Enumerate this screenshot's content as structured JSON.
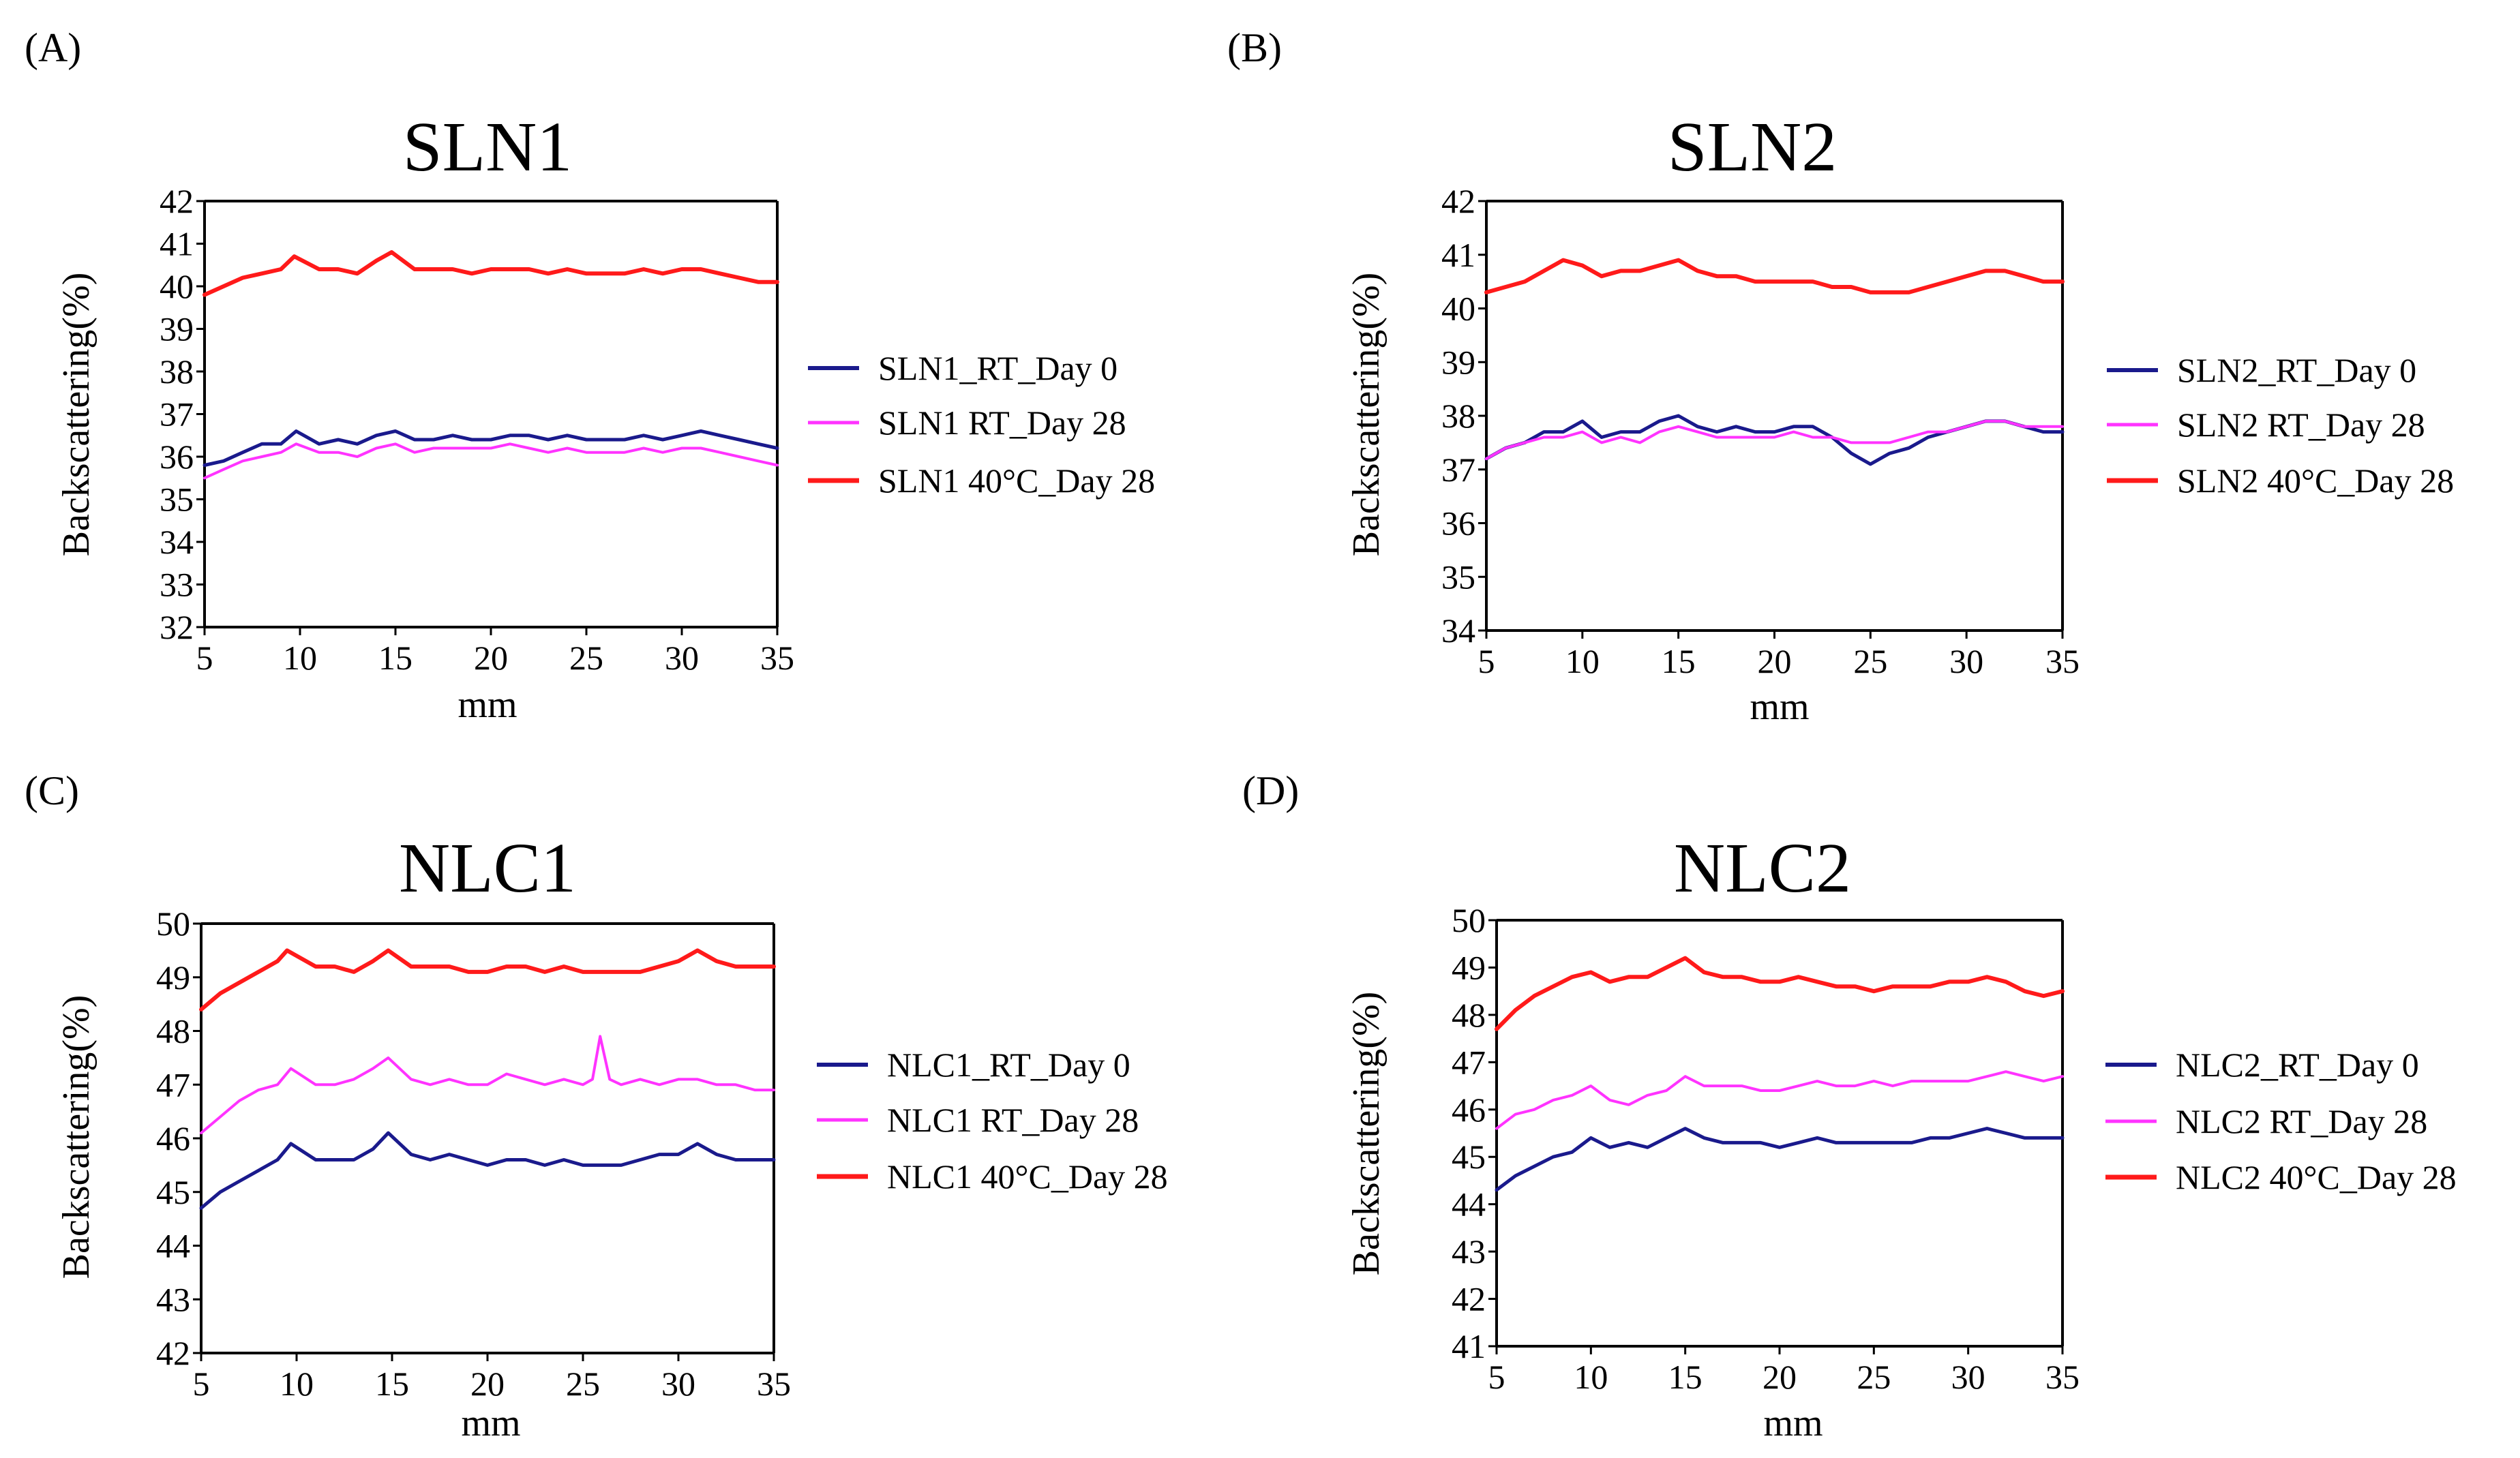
{
  "chart_data": [
    {
      "panel": "(A)",
      "type": "line",
      "title": "SLN1",
      "xlabel": "mm",
      "ylabel": "Backscattering(%)",
      "xlim": [
        5,
        35
      ],
      "ylim": [
        32,
        42
      ],
      "xticks": [
        5,
        10,
        15,
        20,
        25,
        30,
        35
      ],
      "yticks": [
        32,
        33,
        34,
        35,
        36,
        37,
        38,
        39,
        40,
        41,
        42
      ],
      "grid": false,
      "legend": "right",
      "series": [
        {
          "name": "SLN1_RT_Day 0",
          "color": "#1a1a8c",
          "x": [
            5,
            6,
            7,
            8,
            9,
            9.8,
            11,
            12,
            13,
            14,
            15,
            16,
            17,
            18,
            19,
            20,
            21,
            22,
            23,
            24,
            25,
            26,
            27,
            28,
            29,
            30,
            31,
            32,
            33,
            34,
            35
          ],
          "y": [
            35.8,
            35.9,
            36.1,
            36.3,
            36.3,
            36.6,
            36.3,
            36.4,
            36.3,
            36.5,
            36.6,
            36.4,
            36.4,
            36.5,
            36.4,
            36.4,
            36.5,
            36.5,
            36.4,
            36.5,
            36.4,
            36.4,
            36.4,
            36.5,
            36.4,
            36.5,
            36.6,
            36.5,
            36.4,
            36.3,
            36.2
          ]
        },
        {
          "name": "SLN1 RT_Day 28",
          "color": "#ff33ff",
          "x": [
            5,
            6,
            7,
            8,
            9,
            9.8,
            11,
            12,
            13,
            14,
            15,
            16,
            17,
            18,
            19,
            20,
            21,
            22,
            23,
            24,
            25,
            26,
            27,
            28,
            29,
            30,
            31,
            32,
            33,
            34,
            35
          ],
          "y": [
            35.5,
            35.7,
            35.9,
            36.0,
            36.1,
            36.3,
            36.1,
            36.1,
            36.0,
            36.2,
            36.3,
            36.1,
            36.2,
            36.2,
            36.2,
            36.2,
            36.3,
            36.2,
            36.1,
            36.2,
            36.1,
            36.1,
            36.1,
            36.2,
            36.1,
            36.2,
            36.2,
            36.1,
            36.0,
            35.9,
            35.8
          ]
        },
        {
          "name": "SLN1 40°C_Day 28",
          "color": "#ff1a1a",
          "x": [
            5,
            6,
            7,
            8,
            9,
            9.7,
            11,
            12,
            13,
            14,
            14.8,
            16,
            17,
            18,
            19,
            20,
            21,
            22,
            23,
            24,
            25,
            26,
            27,
            28,
            29,
            30,
            31,
            32,
            33,
            34,
            35
          ],
          "y": [
            39.8,
            40.0,
            40.2,
            40.3,
            40.4,
            40.7,
            40.4,
            40.4,
            40.3,
            40.6,
            40.8,
            40.4,
            40.4,
            40.4,
            40.3,
            40.4,
            40.4,
            40.4,
            40.3,
            40.4,
            40.3,
            40.3,
            40.3,
            40.4,
            40.3,
            40.4,
            40.4,
            40.3,
            40.2,
            40.1,
            40.1
          ]
        }
      ]
    },
    {
      "panel": "(B)",
      "type": "line",
      "title": "SLN2",
      "xlabel": "mm",
      "ylabel": "Backscattering(%)",
      "xlim": [
        5,
        35
      ],
      "ylim": [
        34,
        42
      ],
      "xticks": [
        5,
        10,
        15,
        20,
        25,
        30,
        35
      ],
      "yticks": [
        34,
        35,
        36,
        37,
        38,
        39,
        40,
        41,
        42
      ],
      "grid": false,
      "legend": "right",
      "series": [
        {
          "name": "SLN2_RT_Day 0",
          "color": "#1a1a8c",
          "x": [
            5,
            6,
            7,
            8,
            9,
            10,
            11,
            12,
            13,
            14,
            15,
            16,
            17,
            18,
            19,
            20,
            21,
            22,
            23,
            24,
            25,
            26,
            27,
            28,
            29,
            30,
            31,
            32,
            33,
            34,
            35
          ],
          "y": [
            37.2,
            37.4,
            37.5,
            37.7,
            37.7,
            37.9,
            37.6,
            37.7,
            37.7,
            37.9,
            38.0,
            37.8,
            37.7,
            37.8,
            37.7,
            37.7,
            37.8,
            37.8,
            37.6,
            37.3,
            37.1,
            37.3,
            37.4,
            37.6,
            37.7,
            37.8,
            37.9,
            37.9,
            37.8,
            37.7,
            37.7
          ]
        },
        {
          "name": "SLN2 RT_Day 28",
          "color": "#ff33ff",
          "x": [
            5,
            6,
            7,
            8,
            9,
            10,
            11,
            12,
            13,
            14,
            15,
            16,
            17,
            18,
            19,
            20,
            21,
            22,
            23,
            24,
            25,
            26,
            27,
            28,
            29,
            30,
            31,
            32,
            33,
            34,
            35
          ],
          "y": [
            37.2,
            37.4,
            37.5,
            37.6,
            37.6,
            37.7,
            37.5,
            37.6,
            37.5,
            37.7,
            37.8,
            37.7,
            37.6,
            37.6,
            37.6,
            37.6,
            37.7,
            37.6,
            37.6,
            37.5,
            37.5,
            37.5,
            37.6,
            37.7,
            37.7,
            37.8,
            37.9,
            37.9,
            37.8,
            37.8,
            37.8
          ]
        },
        {
          "name": "SLN2 40°C_Day 28",
          "color": "#ff1a1a",
          "x": [
            5,
            6,
            7,
            8,
            9,
            10,
            11,
            12,
            13,
            14,
            15,
            16,
            17,
            18,
            19,
            20,
            21,
            22,
            23,
            24,
            25,
            26,
            27,
            28,
            29,
            30,
            31,
            32,
            33,
            34,
            35
          ],
          "y": [
            40.3,
            40.4,
            40.5,
            40.7,
            40.9,
            40.8,
            40.6,
            40.7,
            40.7,
            40.8,
            40.9,
            40.7,
            40.6,
            40.6,
            40.5,
            40.5,
            40.5,
            40.5,
            40.4,
            40.4,
            40.3,
            40.3,
            40.3,
            40.4,
            40.5,
            40.6,
            40.7,
            40.7,
            40.6,
            40.5,
            40.5
          ]
        }
      ]
    },
    {
      "panel": "(C)",
      "type": "line",
      "title": "NLC1",
      "xlabel": "mm",
      "ylabel": "Backscattering(%)",
      "xlim": [
        5,
        35
      ],
      "ylim": [
        42,
        50
      ],
      "xticks": [
        5,
        10,
        15,
        20,
        25,
        30,
        35
      ],
      "yticks": [
        42,
        43,
        44,
        45,
        46,
        47,
        48,
        49,
        50
      ],
      "grid": false,
      "legend": "right",
      "series": [
        {
          "name": "NLC1_RT_Day 0",
          "color": "#1a1a8c",
          "x": [
            5,
            6,
            7,
            8,
            9,
            9.7,
            11,
            12,
            13,
            14,
            14.8,
            16,
            17,
            18,
            19,
            20,
            21,
            22,
            23,
            24,
            25,
            26,
            27,
            28,
            29,
            30,
            31,
            32,
            33,
            34,
            35
          ],
          "y": [
            44.7,
            45.0,
            45.2,
            45.4,
            45.6,
            45.9,
            45.6,
            45.6,
            45.6,
            45.8,
            46.1,
            45.7,
            45.6,
            45.7,
            45.6,
            45.5,
            45.6,
            45.6,
            45.5,
            45.6,
            45.5,
            45.5,
            45.5,
            45.6,
            45.7,
            45.7,
            45.9,
            45.7,
            45.6,
            45.6,
            45.6
          ]
        },
        {
          "name": "NLC1 RT_Day 28",
          "color": "#ff33ff",
          "x": [
            5,
            6,
            7,
            8,
            9,
            9.7,
            11,
            12,
            13,
            14,
            14.8,
            16,
            17,
            18,
            19,
            20,
            21,
            22,
            23,
            24,
            25,
            25.5,
            25.9,
            26.4,
            27,
            28,
            29,
            30,
            31,
            32,
            33,
            34,
            35
          ],
          "y": [
            46.1,
            46.4,
            46.7,
            46.9,
            47.0,
            47.3,
            47.0,
            47.0,
            47.1,
            47.3,
            47.5,
            47.1,
            47.0,
            47.1,
            47.0,
            47.0,
            47.2,
            47.1,
            47.0,
            47.1,
            47.0,
            47.1,
            47.9,
            47.1,
            47.0,
            47.1,
            47.0,
            47.1,
            47.1,
            47.0,
            47.0,
            46.9,
            46.9
          ]
        },
        {
          "name": "NLC1 40°C_Day 28",
          "color": "#ff1a1a",
          "x": [
            5,
            6,
            7,
            8,
            9,
            9.5,
            11,
            12,
            13,
            14,
            14.8,
            16,
            17,
            18,
            19,
            20,
            21,
            22,
            23,
            24,
            25,
            26,
            27,
            28,
            29,
            30,
            31,
            32,
            33,
            34,
            35
          ],
          "y": [
            48.4,
            48.7,
            48.9,
            49.1,
            49.3,
            49.5,
            49.2,
            49.2,
            49.1,
            49.3,
            49.5,
            49.2,
            49.2,
            49.2,
            49.1,
            49.1,
            49.2,
            49.2,
            49.1,
            49.2,
            49.1,
            49.1,
            49.1,
            49.1,
            49.2,
            49.3,
            49.5,
            49.3,
            49.2,
            49.2,
            49.2
          ]
        }
      ]
    },
    {
      "panel": "(D)",
      "type": "line",
      "title": "NLC2",
      "xlabel": "mm",
      "ylabel": "Backscattering(%)",
      "xlim": [
        5,
        35
      ],
      "ylim": [
        41,
        50
      ],
      "xticks": [
        5,
        10,
        15,
        20,
        25,
        30,
        35
      ],
      "yticks": [
        41,
        42,
        43,
        44,
        45,
        46,
        47,
        48,
        49,
        50
      ],
      "grid": false,
      "legend": "right",
      "series": [
        {
          "name": "NLC2_RT_Day 0",
          "color": "#1a1a8c",
          "x": [
            5,
            6,
            7,
            8,
            9,
            10,
            11,
            12,
            13,
            14,
            15,
            16,
            17,
            18,
            19,
            20,
            21,
            22,
            23,
            24,
            25,
            26,
            27,
            28,
            29,
            30,
            31,
            32,
            33,
            34,
            35
          ],
          "y": [
            44.3,
            44.6,
            44.8,
            45.0,
            45.1,
            45.4,
            45.2,
            45.3,
            45.2,
            45.4,
            45.6,
            45.4,
            45.3,
            45.3,
            45.3,
            45.2,
            45.3,
            45.4,
            45.3,
            45.3,
            45.3,
            45.3,
            45.3,
            45.4,
            45.4,
            45.5,
            45.6,
            45.5,
            45.4,
            45.4,
            45.4
          ]
        },
        {
          "name": "NLC2 RT_Day 28",
          "color": "#ff33ff",
          "x": [
            5,
            6,
            7,
            8,
            9,
            10,
            11,
            12,
            13,
            14,
            15,
            16,
            17,
            18,
            19,
            20,
            21,
            22,
            23,
            24,
            25,
            26,
            27,
            28,
            29,
            30,
            31,
            32,
            33,
            34,
            35
          ],
          "y": [
            45.6,
            45.9,
            46.0,
            46.2,
            46.3,
            46.5,
            46.2,
            46.1,
            46.3,
            46.4,
            46.7,
            46.5,
            46.5,
            46.5,
            46.4,
            46.4,
            46.5,
            46.6,
            46.5,
            46.5,
            46.6,
            46.5,
            46.6,
            46.6,
            46.6,
            46.6,
            46.7,
            46.8,
            46.7,
            46.6,
            46.7
          ]
        },
        {
          "name": "NLC2 40°C_Day 28",
          "color": "#ff1a1a",
          "x": [
            5,
            6,
            7,
            8,
            9,
            10,
            11,
            12,
            13,
            14,
            15,
            16,
            17,
            18,
            19,
            20,
            21,
            22,
            23,
            24,
            25,
            26,
            27,
            28,
            29,
            30,
            31,
            32,
            33,
            34,
            35
          ],
          "y": [
            47.7,
            48.1,
            48.4,
            48.6,
            48.8,
            48.9,
            48.7,
            48.8,
            48.8,
            49.0,
            49.2,
            48.9,
            48.8,
            48.8,
            48.7,
            48.7,
            48.8,
            48.7,
            48.6,
            48.6,
            48.5,
            48.6,
            48.6,
            48.6,
            48.7,
            48.7,
            48.8,
            48.7,
            48.5,
            48.4,
            48.5
          ]
        }
      ]
    }
  ]
}
